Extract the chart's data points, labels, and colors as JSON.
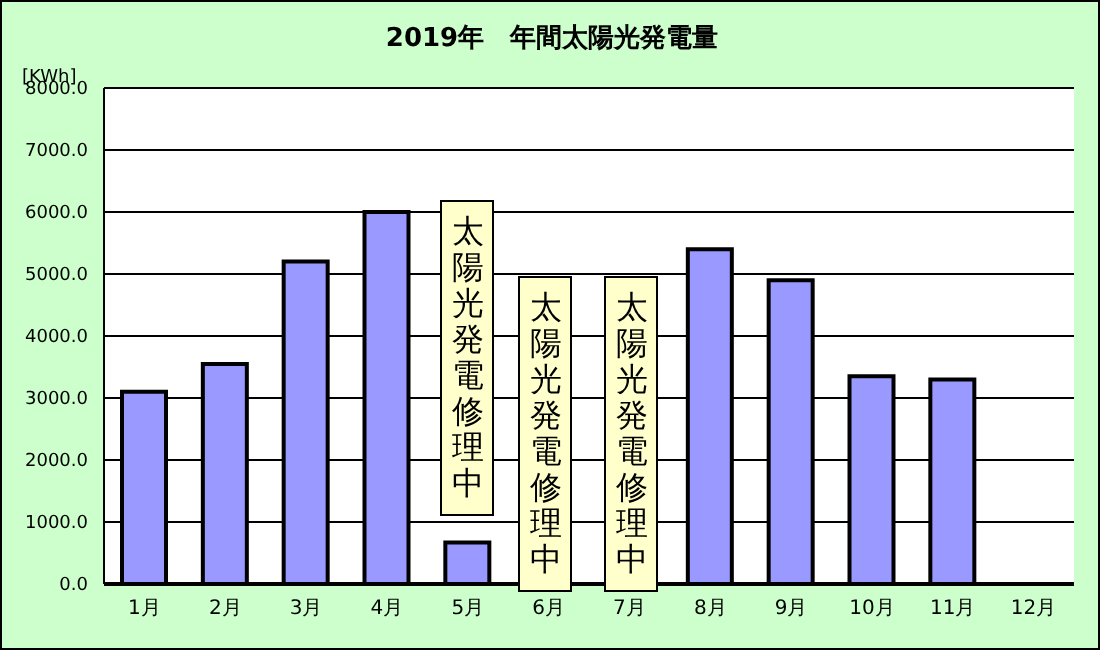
{
  "chart_data": {
    "type": "bar",
    "title": "2019年　年間太陽光発電量",
    "ylabel": "[KWh]",
    "categories": [
      "1月",
      "2月",
      "3月",
      "4月",
      "5月",
      "6月",
      "7月",
      "8月",
      "9月",
      "10月",
      "11月",
      "12月"
    ],
    "values": [
      3100,
      3550,
      5200,
      6000,
      670,
      null,
      null,
      5400,
      4900,
      3350,
      3300,
      null
    ],
    "color": "#9999ff",
    "ylim": [
      0,
      8000
    ],
    "yticks": [
      {
        "value": 0,
        "label": "0.0"
      },
      {
        "value": 1000,
        "label": "1000.0"
      },
      {
        "value": 2000,
        "label": "2000.0"
      },
      {
        "value": 3000,
        "label": "3000.0"
      },
      {
        "value": 4000,
        "label": "4000.0"
      },
      {
        "value": 5000,
        "label": "5000.0"
      },
      {
        "value": 6000,
        "label": "6000.0"
      },
      {
        "value": 7000,
        "label": "7000.0"
      },
      {
        "value": 8000,
        "label": "8000.0"
      }
    ],
    "grid": "y",
    "legend": false,
    "annotations": [
      "太陽光発電修理中",
      "太陽光発電修理中",
      "太陽光発電修理中"
    ]
  }
}
